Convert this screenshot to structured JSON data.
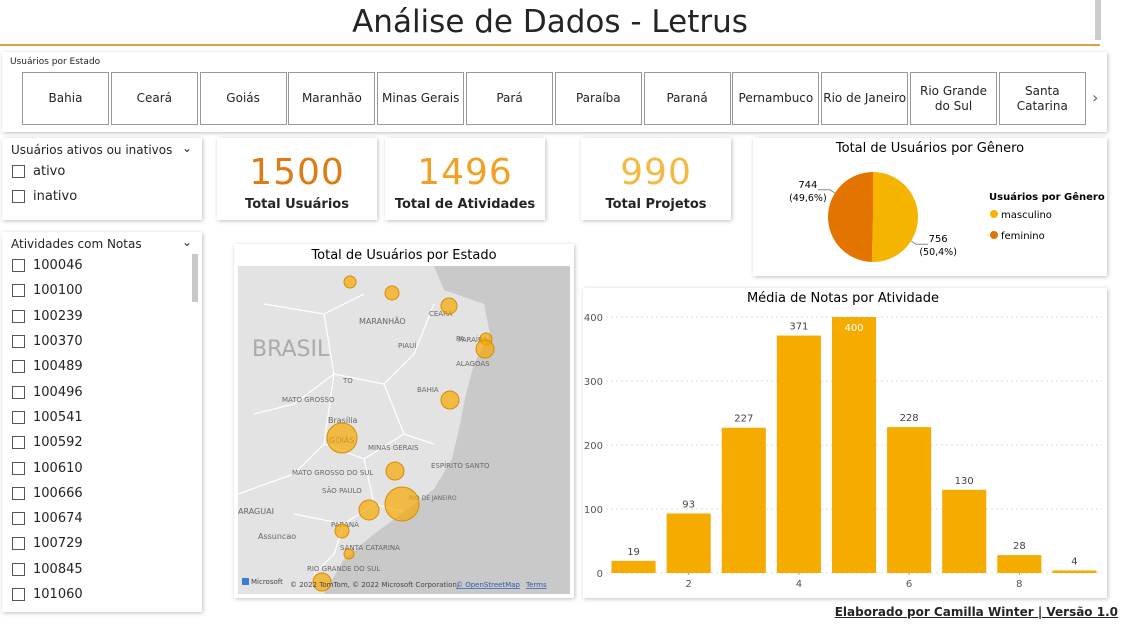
{
  "header": {
    "title": "Análise de Dados - Letrus"
  },
  "state_slicer": {
    "title": "Usuários por Estado",
    "items": [
      "Bahia",
      "Ceará",
      "Goiás",
      "Maranhão",
      "Minas Gerais",
      "Pará",
      "Paraíba",
      "Paraná",
      "Pernambuco",
      "Rio de Janeiro",
      "Rio Grande do Sul",
      "Santa Catarina"
    ]
  },
  "status_slicer": {
    "title": "Usuários ativos ou inativos",
    "items": [
      "ativo",
      "inativo"
    ]
  },
  "activity_slicer": {
    "title": "Atividades com Notas",
    "items": [
      "100046",
      "100100",
      "100239",
      "100370",
      "100489",
      "100496",
      "100541",
      "100592",
      "100610",
      "100666",
      "100674",
      "100729",
      "100845",
      "101060"
    ]
  },
  "kpis": [
    {
      "value": 1500,
      "label": "Total Usuários",
      "color": "#e07b14"
    },
    {
      "value": 1496,
      "label": "Total de Atividades",
      "color": "#f0a126"
    },
    {
      "value": 990,
      "label": "Total Projetos",
      "color": "#f5b942"
    }
  ],
  "map": {
    "title": "Total de Usuários por Estado",
    "labels": [
      "BRASIL",
      "MARANHÃO",
      "CEARÁ",
      "PIAUÍ",
      "PARAÍBA",
      "ALAGOAS",
      "TO",
      "BAHIA",
      "MATO GROSSO",
      "Brasília",
      "GOIÁS",
      "MINAS GERAIS",
      "ESPÍRITO SANTO",
      "MATO GROSSO DO SUL",
      "SÃO PAULO",
      "RIO DE JANEIRO",
      "ARAGUAI",
      "PARANÁ",
      "Assuncao",
      "SANTA CATARINA",
      "RIO GRANDE DO SUL",
      "PA"
    ],
    "attribution": "Microsoft",
    "copyright": "© 2022 TomTom, © 2022 Microsoft Corporation,",
    "osm": "© OpenStreetMap",
    "terms": "Terms"
  },
  "chart_data": [
    {
      "type": "pie",
      "title": "Total de Usuários por Gênero",
      "legend_title": "Usuários por Gênero",
      "series": [
        {
          "name": "masculino",
          "color": "#f5b400",
          "value": 756,
          "share_label": "(50,4%)"
        },
        {
          "name": "feminino",
          "color": "#e37400",
          "value": 744,
          "share_label": "(49,6%)"
        }
      ]
    },
    {
      "type": "bar",
      "title": "Média de Notas por Atividade",
      "color": "#f5ab00",
      "x": [
        1,
        2,
        3,
        4,
        5,
        6,
        7,
        8,
        9
      ],
      "values": [
        19,
        93,
        227,
        371,
        400,
        228,
        130,
        28,
        4
      ],
      "xlim": [
        0.5,
        9.5
      ],
      "xticks": [
        2,
        4,
        6,
        8
      ],
      "ylim": [
        0,
        400
      ],
      "yticks": [
        0,
        100,
        200,
        300,
        400
      ],
      "grid": true
    }
  ],
  "footer": {
    "text": "Elaborado por Camilla Winter | Versão 1.0"
  }
}
